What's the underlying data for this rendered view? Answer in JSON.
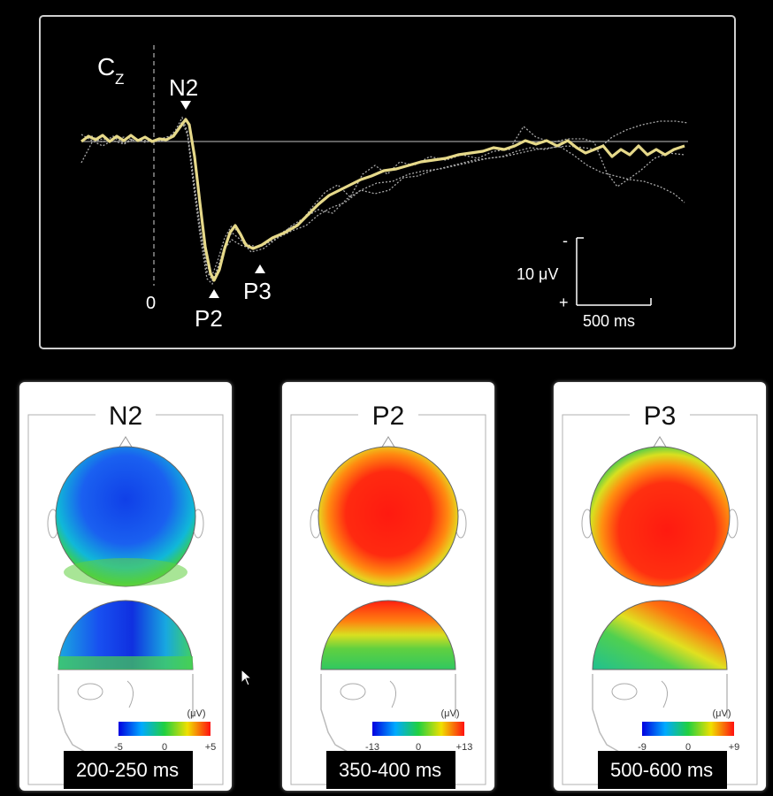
{
  "erp": {
    "electrode": "C",
    "electrode_sub": "Z",
    "zero_label": "0",
    "peaks": {
      "n2": "N2",
      "p2": "P2",
      "p3": "P3"
    },
    "scale": {
      "minus": "-",
      "plus": "+",
      "amplitude": "10 μV",
      "time": "500 ms"
    },
    "trace_color": "#e6d98a"
  },
  "topomaps": [
    {
      "title": "N2",
      "range": "200-250 ms",
      "cb_min": "-5",
      "cb_mid": "0",
      "cb_max": "+5",
      "unit": "(μV)",
      "pattern": "negative"
    },
    {
      "title": "P2",
      "range": "350-400 ms",
      "cb_min": "-13",
      "cb_mid": "0",
      "cb_max": "+13",
      "unit": "(μV)",
      "pattern": "positive"
    },
    {
      "title": "P3",
      "range": "500-600 ms",
      "cb_min": "-9",
      "cb_mid": "0",
      "cb_max": "+9",
      "unit": "(μV)",
      "pattern": "positive-skewed"
    }
  ]
}
